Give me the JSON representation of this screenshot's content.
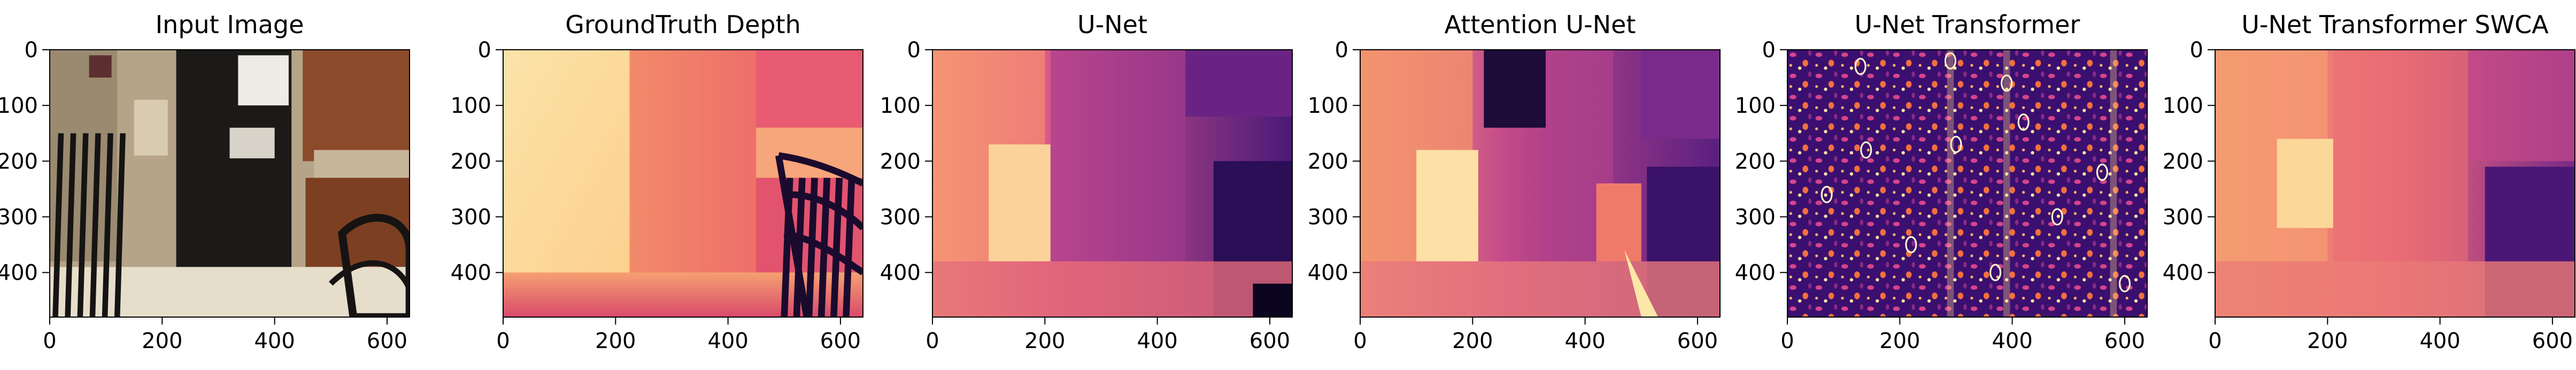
{
  "chart_data": [
    {
      "type": "image",
      "title": "Input Image",
      "content": "photo",
      "xticks": [
        0,
        200,
        400,
        600
      ],
      "yticks": [
        0,
        100,
        200,
        300,
        400
      ],
      "xlim": [
        0,
        640
      ],
      "ylim": [
        480,
        0
      ]
    },
    {
      "type": "heatmap",
      "title": "GroundTruth Depth",
      "colormap": "magma",
      "content": "depth-gt",
      "xticks": [
        0,
        200,
        400,
        600
      ],
      "yticks": [
        0,
        100,
        200,
        300,
        400
      ],
      "xlim": [
        0,
        640
      ],
      "ylim": [
        480,
        0
      ]
    },
    {
      "type": "heatmap",
      "title": "U-Net",
      "colormap": "magma",
      "content": "depth-smooth",
      "xticks": [
        0,
        200,
        400,
        600
      ],
      "yticks": [
        0,
        100,
        200,
        300,
        400
      ],
      "xlim": [
        0,
        640
      ],
      "ylim": [
        480,
        0
      ]
    },
    {
      "type": "heatmap",
      "title": "Attention U-Net",
      "colormap": "magma",
      "content": "depth-attention",
      "xticks": [
        0,
        200,
        400,
        600
      ],
      "yticks": [
        0,
        100,
        200,
        300,
        400
      ],
      "xlim": [
        0,
        640
      ],
      "ylim": [
        480,
        0
      ]
    },
    {
      "type": "heatmap",
      "title": "U-Net Transformer",
      "colormap": "magma",
      "content": "depth-noisy",
      "xticks": [
        0,
        200,
        400,
        600
      ],
      "yticks": [
        0,
        100,
        200,
        300,
        400
      ],
      "xlim": [
        0,
        640
      ],
      "ylim": [
        480,
        0
      ]
    },
    {
      "type": "heatmap",
      "title": "U-Net Transformer SWCA",
      "colormap": "magma",
      "content": "depth-swca",
      "xticks": [
        0,
        200,
        400,
        600
      ],
      "yticks": [
        0,
        100,
        200,
        300,
        400
      ],
      "xlim": [
        0,
        640
      ],
      "ylim": [
        480,
        0
      ]
    }
  ]
}
